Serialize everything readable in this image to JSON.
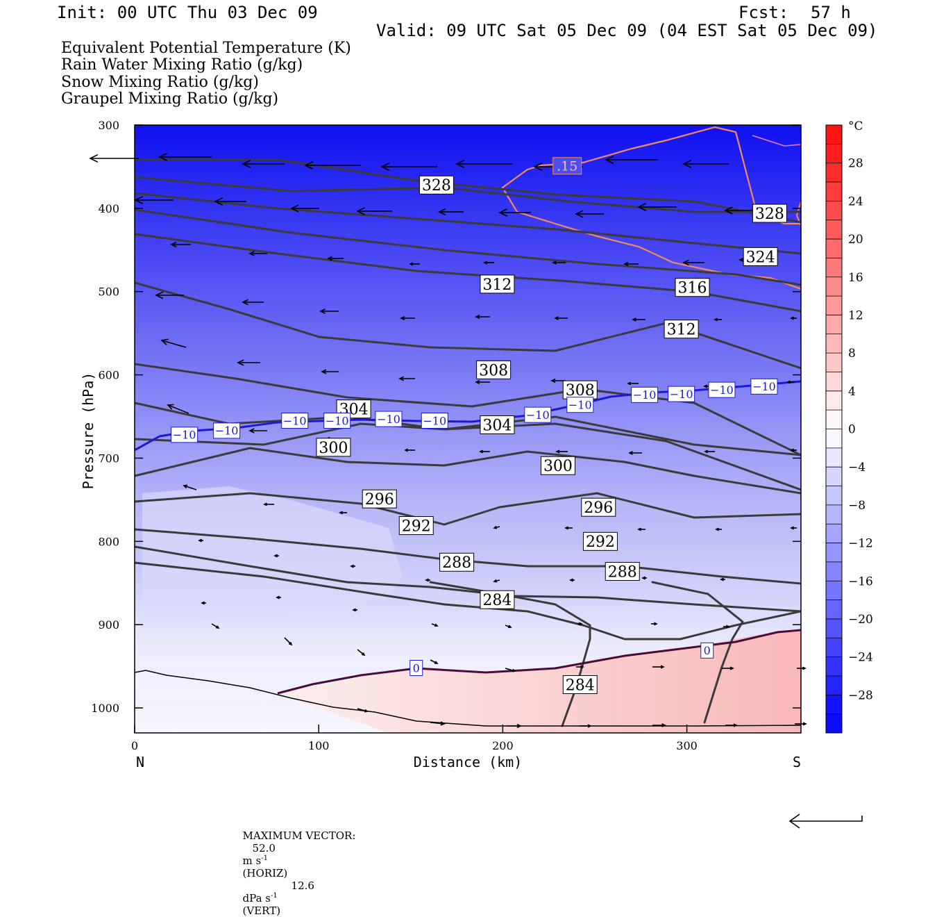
{
  "header": {
    "init": "Init: 00 UTC Thu 03 Dec 09",
    "fcst_label": "Fcst:",
    "fcst_value": "57 h",
    "valid": "Valid: 09 UTC Sat 05 Dec 09 (04 EST Sat 05 Dec 09)"
  },
  "fields": [
    {
      "label": "Equivalent Potential Temperature (K)",
      "color": "#444444"
    },
    {
      "label": "Rain Water Mixing Ratio (g/kg)",
      "color": "#0a7a0a"
    },
    {
      "label": "Snow Mixing Ratio (g/kg)",
      "color": "#f08a5a"
    },
    {
      "label": "Graupel Mixing Ratio (g/kg)",
      "color": "#f07cdc"
    }
  ],
  "footer": {
    "max_vector_label": "MAXIMUM VECTOR:",
    "horiz_value": "52.0",
    "horiz_unit": "m s",
    "horiz_exp": "-1",
    "horiz_tag": "(HORIZ)",
    "vert_value": "12.6",
    "vert_unit": "dPa s",
    "vert_exp": "-1",
    "vert_tag": "(VERT)"
  },
  "chart_data": {
    "type": "cross-section",
    "xlabel": "Distance (km)",
    "ylabel": "Pressure (hPa)",
    "xlim": [
      0,
      362
    ],
    "ylim": [
      1030,
      300
    ],
    "x_ticks": [
      0,
      100,
      200,
      300
    ],
    "y_ticks": [
      300,
      400,
      500,
      600,
      700,
      800,
      900,
      1000
    ],
    "x_end_labels": {
      "left": "N",
      "right": "S"
    },
    "colorbar": {
      "unit": "°C",
      "tick_labels": [
        "28",
        "24",
        "20",
        "16",
        "12",
        "8",
        "4",
        "0",
        "−4",
        "−8",
        "−12",
        "−16",
        "−20",
        "−24",
        "−28"
      ],
      "tick_values": [
        28,
        24,
        20,
        16,
        12,
        8,
        4,
        0,
        -4,
        -8,
        -12,
        -16,
        -20,
        -24,
        -28
      ],
      "range": [
        -32,
        32
      ]
    },
    "theta_e_labels": [
      {
        "text": "328",
        "x": 164,
        "p": 372
      },
      {
        "text": "328",
        "x": 345,
        "p": 406
      },
      {
        "text": "324",
        "x": 340,
        "p": 458
      },
      {
        "text": "312",
        "x": 197,
        "p": 491
      },
      {
        "text": "316",
        "x": 303,
        "p": 495
      },
      {
        "text": "312",
        "x": 297,
        "p": 545
      },
      {
        "text": "308",
        "x": 195,
        "p": 594
      },
      {
        "text": "308",
        "x": 242,
        "p": 618
      },
      {
        "text": "304",
        "x": 119,
        "p": 641
      },
      {
        "text": "304",
        "x": 197,
        "p": 660
      },
      {
        "text": "300",
        "x": 108,
        "p": 687
      },
      {
        "text": "300",
        "x": 230,
        "p": 709
      },
      {
        "text": "296",
        "x": 133,
        "p": 749
      },
      {
        "text": "296",
        "x": 252,
        "p": 759
      },
      {
        "text": "292",
        "x": 153,
        "p": 781
      },
      {
        "text": "292",
        "x": 253,
        "p": 800
      },
      {
        "text": "288",
        "x": 175,
        "p": 825
      },
      {
        "text": "288",
        "x": 265,
        "p": 836
      },
      {
        "text": "284",
        "x": 197,
        "p": 870
      },
      {
        "text": "284",
        "x": 242,
        "p": 972
      }
    ],
    "isotherm_labels": [
      {
        "text": "−10",
        "x": 27,
        "p": 672
      },
      {
        "text": "−10",
        "x": 50,
        "p": 667
      },
      {
        "text": "−10",
        "x": 87,
        "p": 655
      },
      {
        "text": "−10",
        "x": 110,
        "p": 655
      },
      {
        "text": "−10",
        "x": 138,
        "p": 653
      },
      {
        "text": "−10",
        "x": 163,
        "p": 655
      },
      {
        "text": "−10",
        "x": 219,
        "p": 648
      },
      {
        "text": "−10",
        "x": 242,
        "p": 636
      },
      {
        "text": "−10",
        "x": 277,
        "p": 624
      },
      {
        "text": "−10",
        "x": 297,
        "p": 623
      },
      {
        "text": "−10",
        "x": 319,
        "p": 618
      },
      {
        "text": "−10",
        "x": 342,
        "p": 614
      },
      {
        "text": "0",
        "x": 153,
        "p": 952
      },
      {
        "text": "0",
        "x": 311,
        "p": 931
      }
    ],
    "snow_labels": [
      {
        "text": ".15",
        "x": 235,
        "p": 349
      }
    ]
  }
}
